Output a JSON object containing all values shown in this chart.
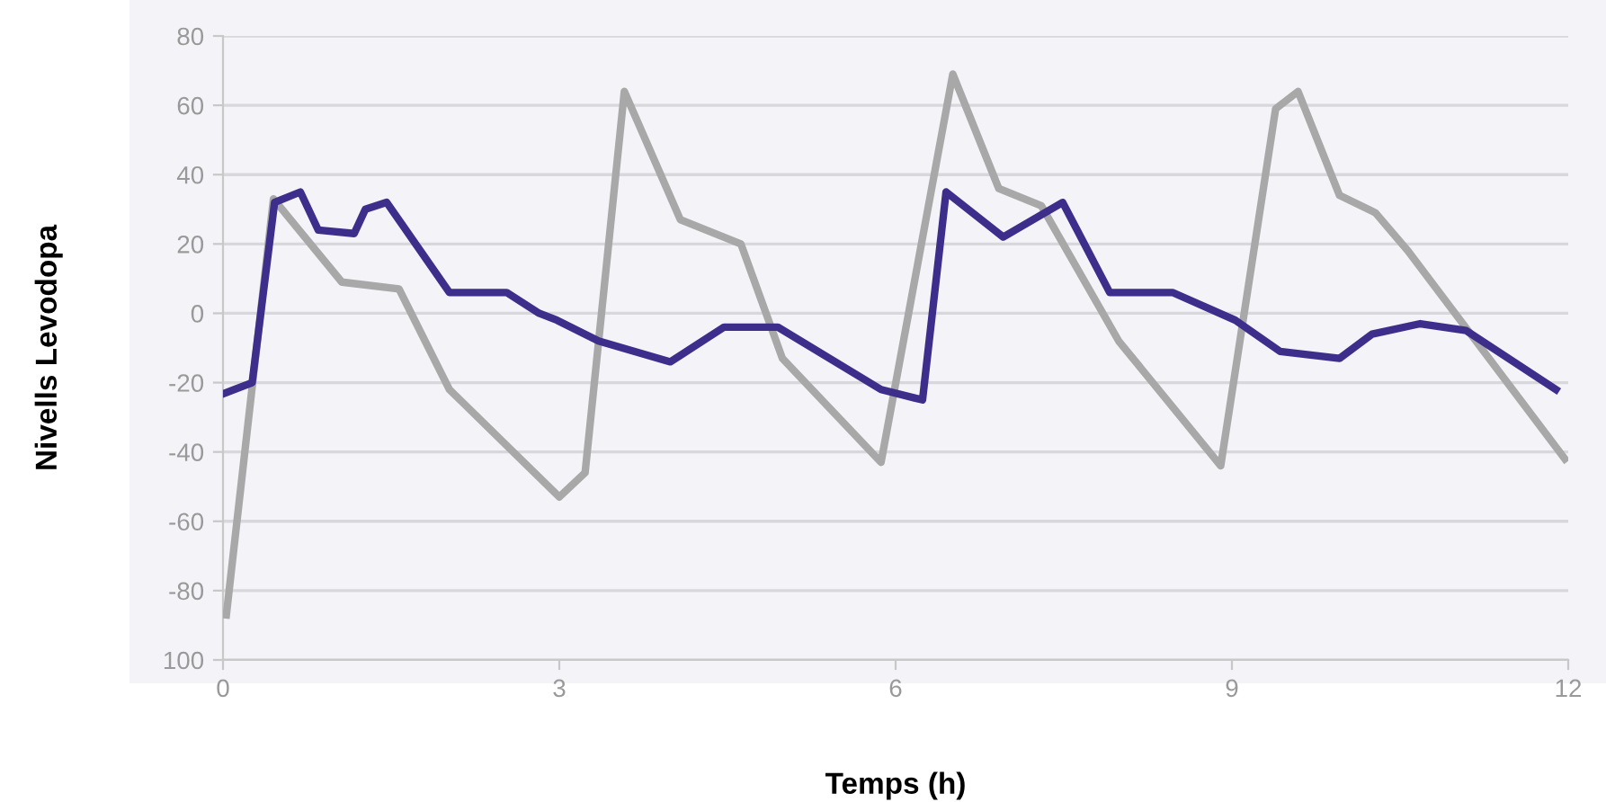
{
  "chart_data": {
    "type": "line",
    "xlabel": "Temps (h)",
    "ylabel": "Nivells Levodopa",
    "xlim": [
      0,
      12
    ],
    "xticks": [
      0,
      3,
      6,
      9,
      12
    ],
    "ylim": [
      -100,
      80
    ],
    "yticks": [
      {
        "value": -100,
        "label": "100"
      },
      -80,
      -60,
      -40,
      -20,
      0,
      20,
      40,
      60,
      80
    ],
    "grid": "y",
    "legend": false,
    "marker": "none",
    "line_style": "solid",
    "series": [
      {
        "color": "#a8a8a8",
        "x": [
          0.03,
          0.45,
          1.06,
          1.57,
          2.02,
          3.0,
          3.23,
          3.58,
          4.08,
          4.62,
          4.99,
          5.87,
          6.51,
          6.92,
          7.3,
          7.99,
          8.9,
          9.39,
          9.59,
          9.96,
          10.28,
          10.57,
          11.97
        ],
        "values": [
          -87,
          33,
          9,
          7,
          -22,
          -53,
          -46,
          64,
          27,
          20,
          -13,
          -43,
          69,
          36,
          31,
          -8,
          -44,
          59,
          64,
          34,
          29,
          18,
          -42
        ]
      },
      {
        "color": "#3d2e8c",
        "x": [
          0.02,
          0.26,
          0.46,
          0.69,
          0.85,
          1.17,
          1.27,
          1.46,
          2.02,
          2.53,
          2.82,
          2.98,
          3.35,
          3.99,
          4.47,
          4.95,
          5.87,
          6.24,
          6.45,
          6.96,
          7.49,
          7.91,
          8.47,
          9.03,
          9.43,
          9.96,
          10.25,
          10.68,
          11.09,
          11.89
        ],
        "values": [
          -23,
          -20,
          32,
          35,
          24,
          23,
          30,
          32,
          6,
          6,
          0,
          -2,
          -8,
          -14,
          -4,
          -4,
          -22,
          -25,
          35,
          22,
          32,
          6,
          6,
          -2,
          -11,
          -13,
          -6,
          -3,
          -5,
          -22
        ]
      }
    ]
  }
}
